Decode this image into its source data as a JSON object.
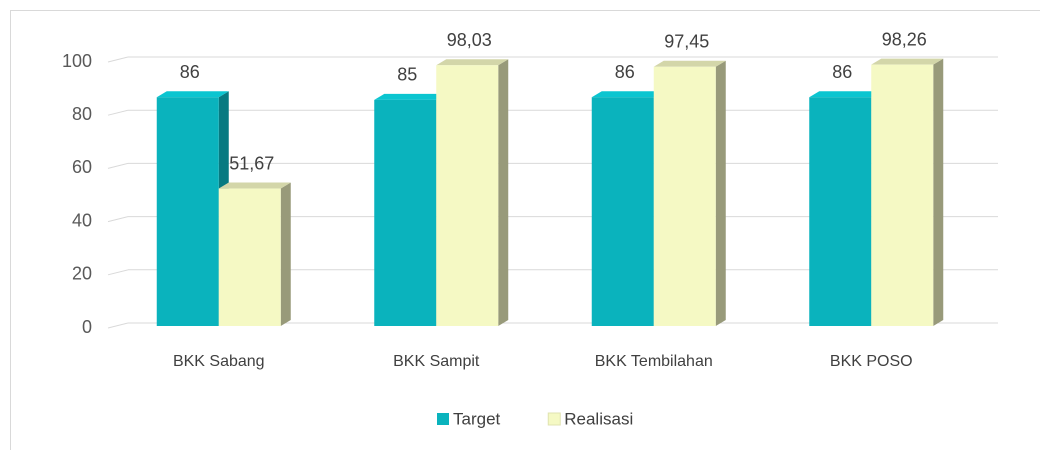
{
  "chart_data": {
    "type": "bar3d",
    "categories": [
      "BKK Sabang",
      "BKK Sampit",
      "BKK Tembilahan",
      "BKK POSO"
    ],
    "series": [
      {
        "name": "Target",
        "color": "#0ab3bd",
        "values": [
          86,
          85,
          86,
          86
        ]
      },
      {
        "name": "Realisasi",
        "color": "#f5f9c4",
        "values": [
          51.67,
          98.03,
          97.45,
          98.26
        ],
        "value_labels": [
          "51,67",
          "98,03",
          "97,45",
          "98,26"
        ]
      }
    ],
    "ylim": [
      0,
      100
    ],
    "yticks": [
      0,
      20,
      40,
      60,
      80,
      100
    ],
    "grid": true,
    "legend": "bottom"
  }
}
